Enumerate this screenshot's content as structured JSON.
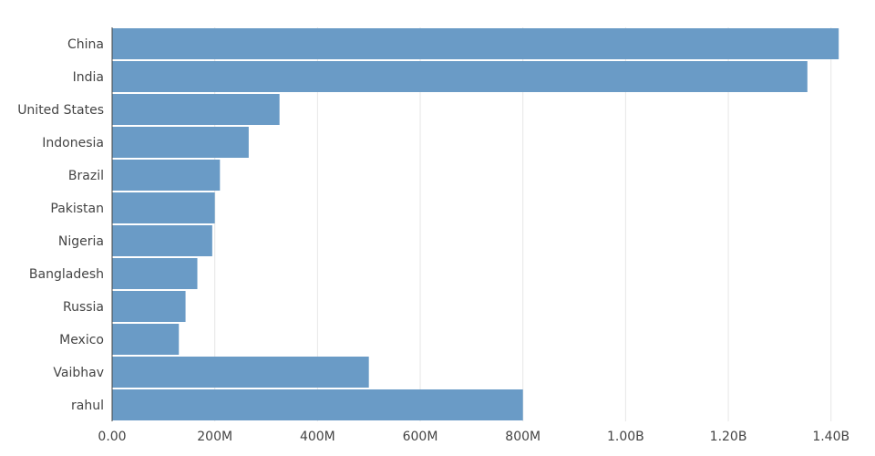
{
  "chart_data": {
    "type": "bar",
    "orientation": "horizontal",
    "categories": [
      "China",
      "India",
      "United States",
      "Indonesia",
      "Brazil",
      "Pakistan",
      "Nigeria",
      "Bangladesh",
      "Russia",
      "Mexico",
      "Vaibhav",
      "rahul"
    ],
    "values": [
      1415000000,
      1354000000,
      326000000,
      266000000,
      210000000,
      200000000,
      195000000,
      166000000,
      143000000,
      130000000,
      500000000,
      800000000
    ],
    "xlim": [
      0,
      1420000000
    ],
    "xticks": [
      {
        "value": 0,
        "label": "0.00"
      },
      {
        "value": 200000000,
        "label": "200M"
      },
      {
        "value": 400000000,
        "label": "400M"
      },
      {
        "value": 600000000,
        "label": "600M"
      },
      {
        "value": 800000000,
        "label": "800M"
      },
      {
        "value": 1000000000,
        "label": "1.00B"
      },
      {
        "value": 1200000000,
        "label": "1.20B"
      },
      {
        "value": 1400000000,
        "label": "1.40B"
      }
    ],
    "grid": true,
    "bar_color": "#6a9bc6",
    "title": "",
    "xlabel": "",
    "ylabel": ""
  }
}
